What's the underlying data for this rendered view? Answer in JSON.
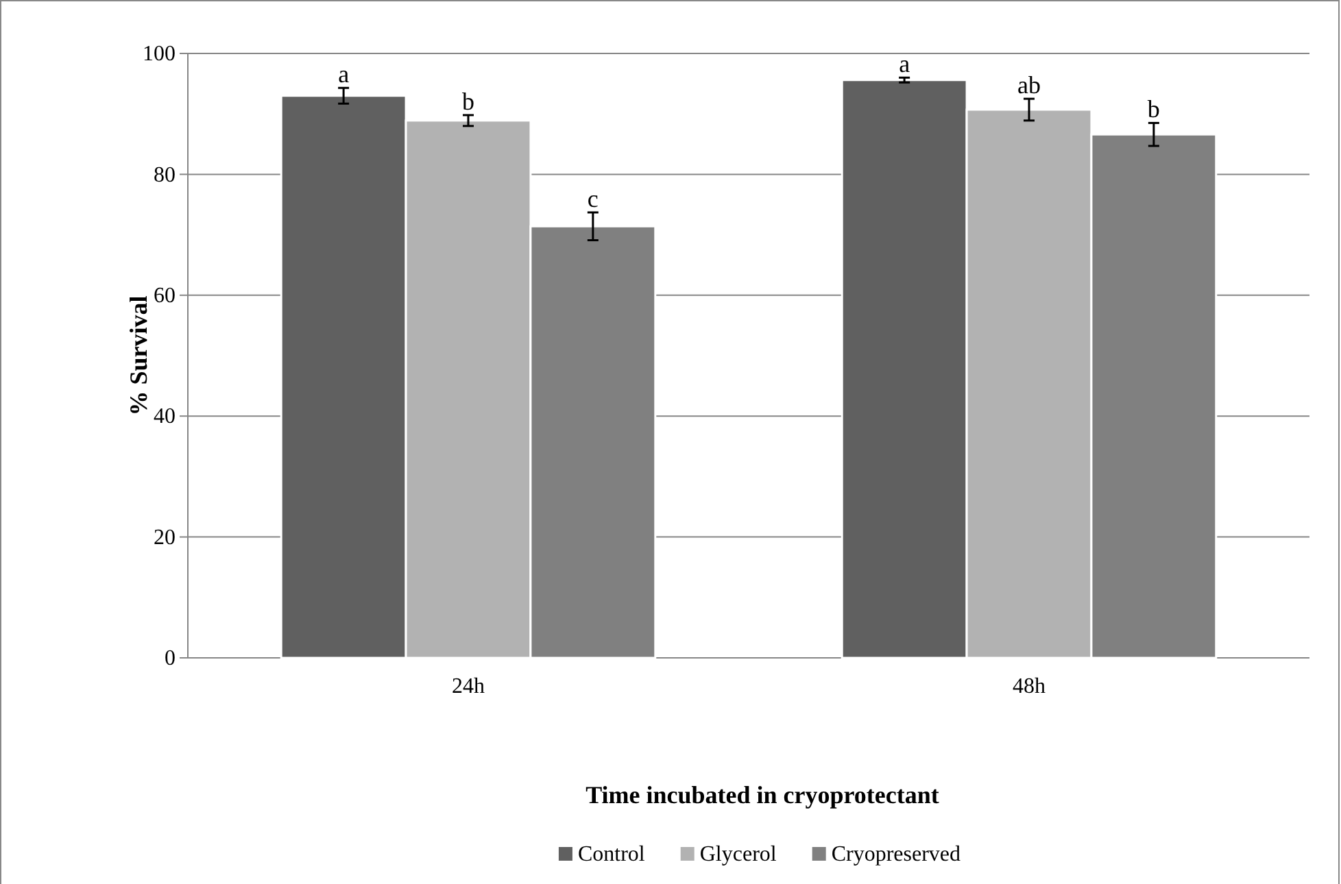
{
  "chart_data": {
    "type": "bar",
    "xlabel": "Time incubated in cryoprotectant",
    "ylabel": "% Survival",
    "categories": [
      "24h",
      "48h"
    ],
    "series": [
      {
        "name": "Control",
        "color": "#606060",
        "values": [
          93.0,
          95.6
        ],
        "errors": [
          1.3,
          0.4
        ]
      },
      {
        "name": "Glycerol",
        "color": "#b2b2b2",
        "values": [
          88.9,
          90.7
        ],
        "errors": [
          0.9,
          1.8
        ]
      },
      {
        "name": "Cryopreserved",
        "color": "#808080",
        "values": [
          71.4,
          86.6
        ],
        "errors": [
          2.3,
          1.9
        ]
      }
    ],
    "ylim": [
      0,
      100
    ],
    "yticks": [
      0,
      20,
      40,
      60,
      80,
      100
    ],
    "grid": "y",
    "legend": "bottom",
    "annotations": [
      "a",
      "b",
      "c",
      "a",
      "ab",
      "b"
    ]
  }
}
